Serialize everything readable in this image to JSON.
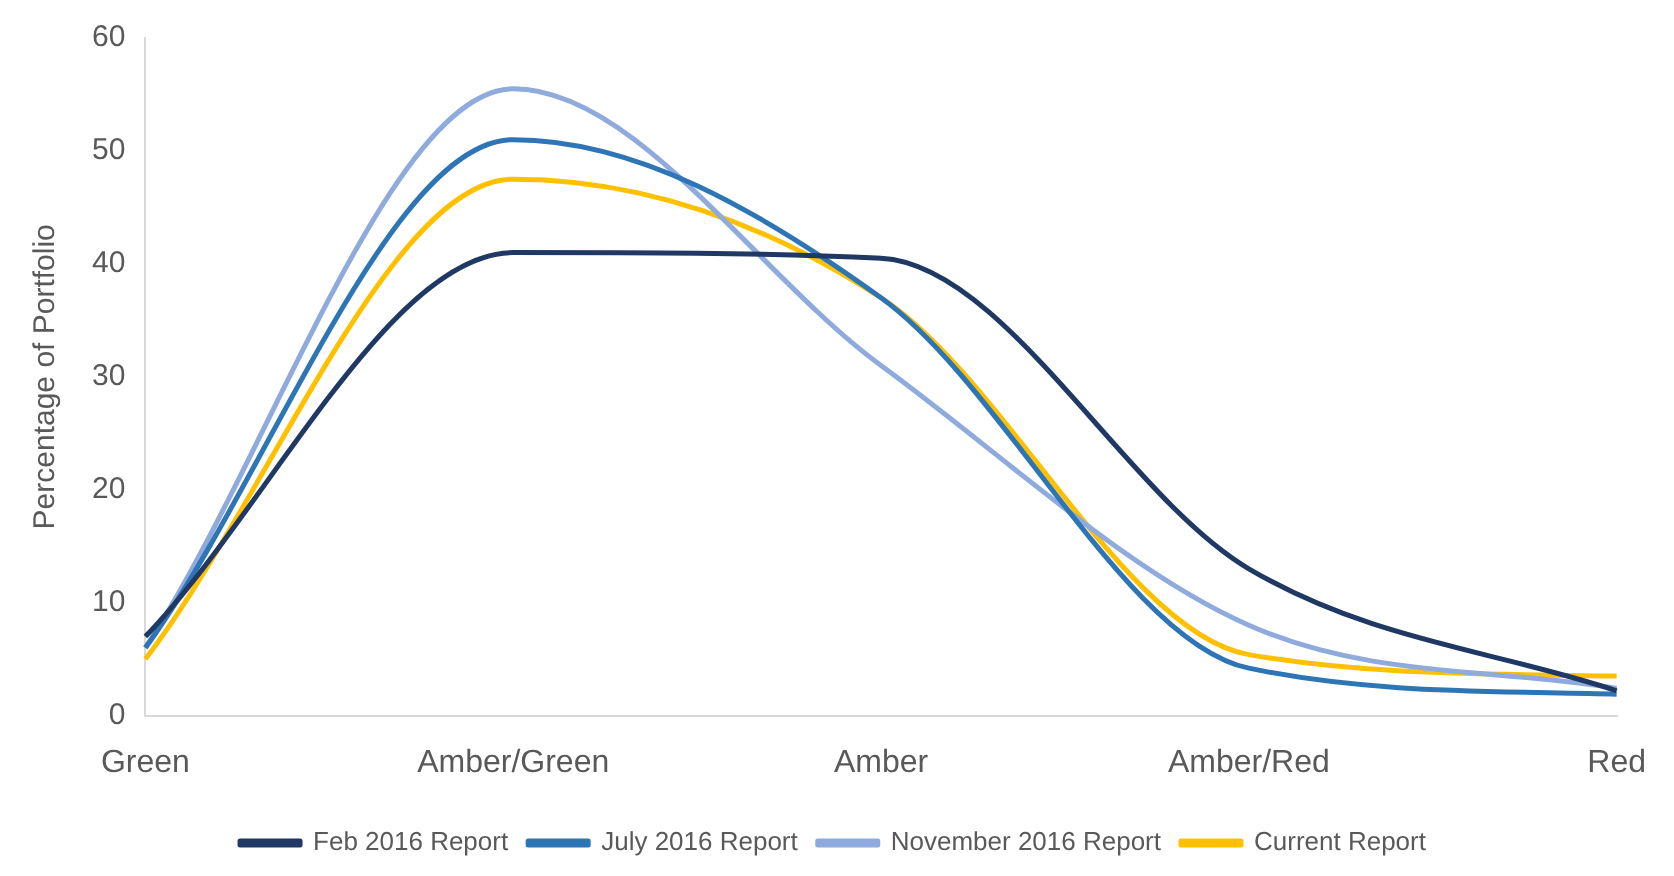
{
  "chart_data": {
    "type": "line",
    "ylabel": "Percentage of Portfolio",
    "categories": [
      "Green",
      "Amber/Green",
      "Amber",
      "Amber/Red",
      "Red"
    ],
    "series": [
      {
        "name": "Feb 2016 Report",
        "color": "#1f3864",
        "values": [
          7,
          41,
          40.5,
          13,
          2.2
        ]
      },
      {
        "name": "July 2016 Report",
        "color": "#2e75b6",
        "values": [
          6,
          51,
          37,
          4.2,
          1.9
        ]
      },
      {
        "name": "November 2016 Report",
        "color": "#8faadc",
        "values": [
          6,
          55.5,
          31,
          8,
          2.4
        ]
      },
      {
        "name": "Current Report",
        "color": "#ffc000",
        "values": [
          5,
          47.5,
          37,
          5.4,
          3.5
        ]
      }
    ],
    "ylim": [
      0,
      60
    ],
    "yticks": [
      0,
      10,
      20,
      30,
      40,
      50,
      60
    ],
    "grid": false,
    "legend": "bottom",
    "marker": "none",
    "line_style": "solid"
  }
}
